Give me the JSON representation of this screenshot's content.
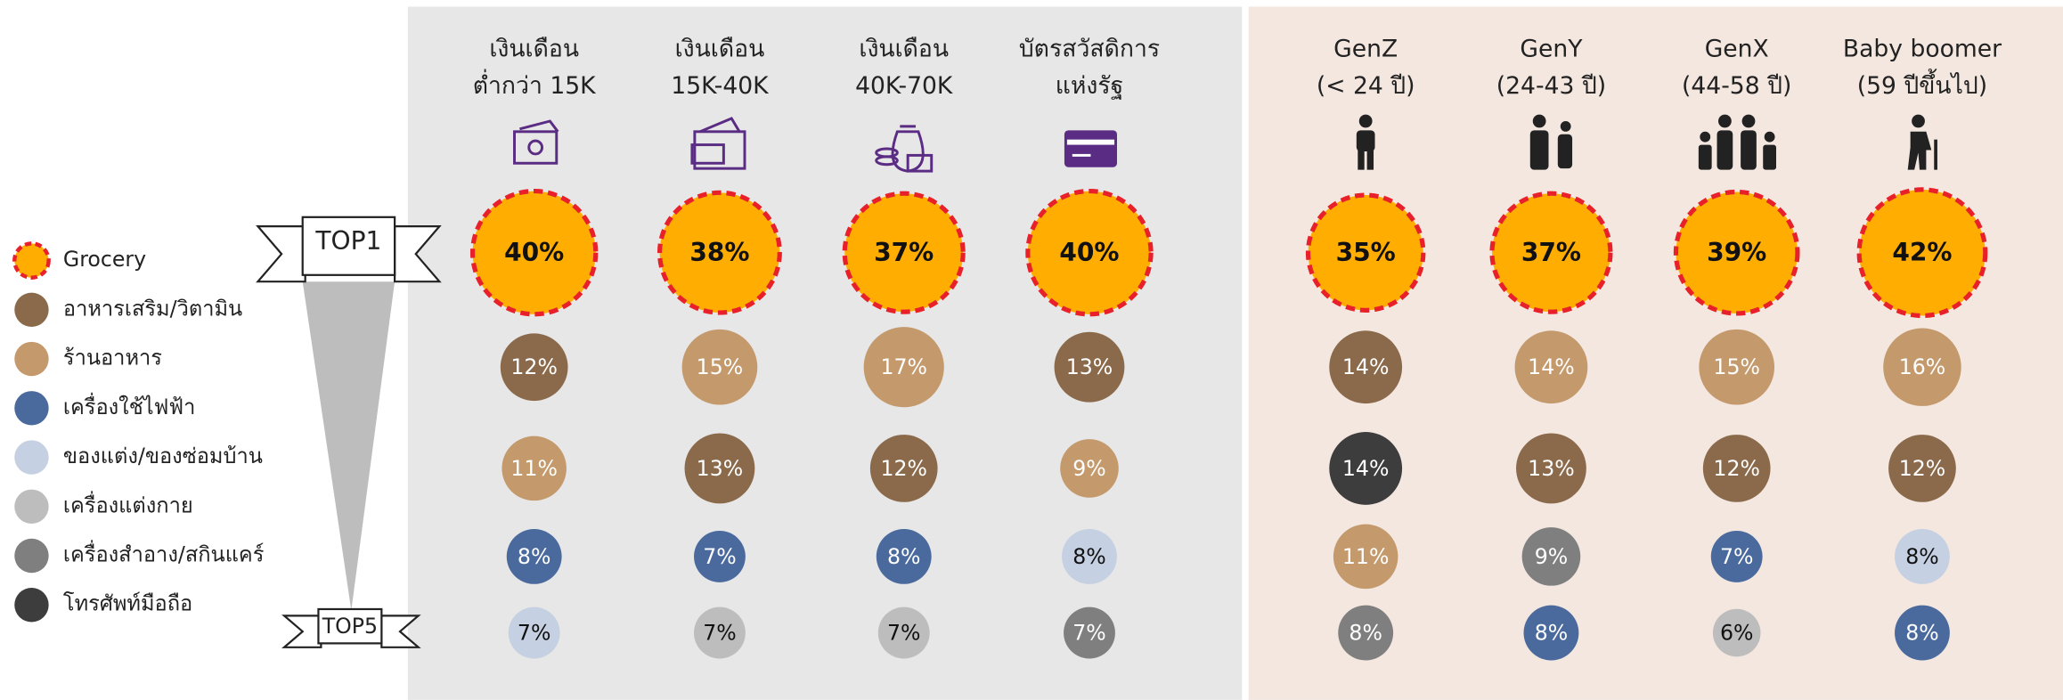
{
  "legend": [
    {
      "name": "Grocery",
      "color": "#FFAD00"
    },
    {
      "name": "อาหารเสริม/วิตามิน",
      "color": "#8B6A4B"
    },
    {
      "name": "ร้านอาหาร",
      "color": "#C4996C"
    },
    {
      "name": "เครื่องใช้ไฟฟ้า",
      "color": "#4A6A9E"
    },
    {
      "name": "ของแต่ง/ของซ่อมบ้าน",
      "color": "#C5D0E2"
    },
    {
      "name": "เครื่องแต่งกาย",
      "color": "#BDBDBD"
    },
    {
      "name": "เครื่องสำอาง/สกินแคร์",
      "color": "#7F7F7F"
    },
    {
      "name": "โทรศัพท์มือถือ",
      "color": "#3D3D3D"
    }
  ],
  "rank_labels": [
    "TOP1",
    "TOP5"
  ],
  "columns": [
    {
      "header": [
        "เงินเดือน",
        "ต่ำกว่า 15K"
      ],
      "categories": [
        "Grocery",
        "อาหารเสริม/วิตามิน",
        "ร้านอาหาร",
        "เครื่องใช้ไฟฟ้า",
        "ของแต่ง/ของซ่อมบ้าน"
      ],
      "values": [
        40,
        12,
        11,
        8,
        7
      ],
      "value_labels": [
        "40%",
        "12%",
        "11%",
        "8%",
        "7%"
      ]
    },
    {
      "header": [
        "เงินเดือน",
        "15K-40K"
      ],
      "categories": [
        "Grocery",
        "ร้านอาหาร",
        "อาหารเสริม/วิตามิน",
        "เครื่องใช้ไฟฟ้า",
        "เครื่องแต่งกาย"
      ],
      "values": [
        38,
        15,
        13,
        7,
        7
      ],
      "value_labels": [
        "38%",
        "15%",
        "13%",
        "7%",
        "7%"
      ]
    },
    {
      "header": [
        "เงินเดือน",
        "40K-70K"
      ],
      "categories": [
        "Grocery",
        "ร้านอาหาร",
        "อาหารเสริม/วิตามิน",
        "เครื่องใช้ไฟฟ้า",
        "เครื่องแต่งกาย"
      ],
      "values": [
        37,
        17,
        12,
        8,
        7
      ],
      "value_labels": [
        "37%",
        "17%",
        "12%",
        "8%",
        "7%"
      ]
    },
    {
      "header": [
        "บัตรสวัสดิการ",
        "แห่งรัฐ"
      ],
      "categories": [
        "Grocery",
        "อาหารเสริม/วิตามิน",
        "ร้านอาหาร",
        "ของแต่ง/ของซ่อมบ้าน",
        "เครื่องสำอาง/สกินแคร์"
      ],
      "values": [
        40,
        13,
        9,
        8,
        7
      ],
      "value_labels": [
        "40%",
        "13%",
        "9%",
        "8%",
        "7%"
      ]
    },
    {
      "header": [
        "GenZ",
        "(< 24 ปี)"
      ],
      "categories": [
        "Grocery",
        "อาหารเสริม/วิตามิน",
        "โทรศัพท์มือถือ",
        "ร้านอาหาร",
        "เครื่องสำอาง/สกินแคร์"
      ],
      "values": [
        35,
        14,
        14,
        11,
        8
      ],
      "value_labels": [
        "35%",
        "14%",
        "14%",
        "11%",
        "8%"
      ]
    },
    {
      "header": [
        "GenY",
        "(24-43 ปี)"
      ],
      "categories": [
        "Grocery",
        "ร้านอาหาร",
        "อาหารเสริม/วิตามิน",
        "เครื่องสำอาง/สกินแคร์",
        "เครื่องใช้ไฟฟ้า"
      ],
      "values": [
        37,
        14,
        13,
        9,
        8
      ],
      "value_labels": [
        "37%",
        "14%",
        "13%",
        "9%",
        "8%"
      ]
    },
    {
      "header": [
        "GenX",
        "(44-58 ปี)"
      ],
      "categories": [
        "Grocery",
        "ร้านอาหาร",
        "อาหารเสริม/วิตามิน",
        "เครื่องใช้ไฟฟ้า",
        "เครื่องแต่งกาย"
      ],
      "values": [
        39,
        15,
        12,
        7,
        6
      ],
      "value_labels": [
        "39%",
        "15%",
        "12%",
        "7%",
        "6%"
      ]
    },
    {
      "header": [
        "Baby boomer",
        "(59 ปีขึ้นไป)"
      ],
      "categories": [
        "Grocery",
        "ร้านอาหาร",
        "อาหารเสริม/วิตามิน",
        "ของแต่ง/ของซ่อมบ้าน",
        "เครื่องใช้ไฟฟ้า"
      ],
      "values": [
        42,
        16,
        12,
        8,
        8
      ],
      "value_labels": [
        "42%",
        "16%",
        "12%",
        "8%",
        "8%"
      ]
    }
  ]
}
